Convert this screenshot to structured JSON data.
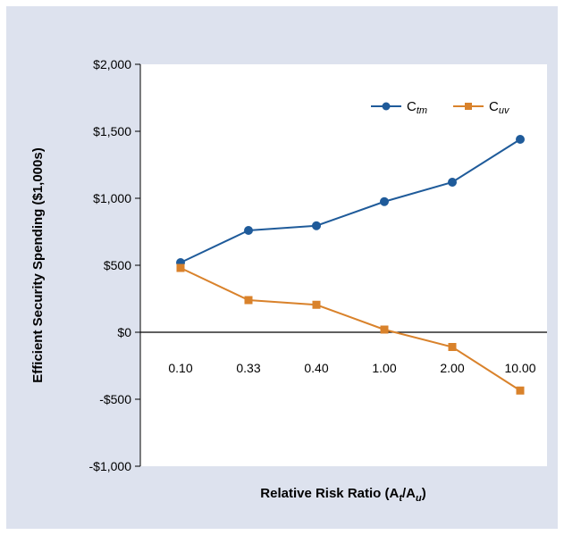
{
  "chart_data": {
    "type": "line",
    "categories": [
      "0.10",
      "0.33",
      "0.40",
      "1.00",
      "2.00",
      "10.00"
    ],
    "series": [
      {
        "name": "Ctm",
        "name_main": "C",
        "name_sub": "tm",
        "color": "#1f5b9a",
        "marker": "circle",
        "values": [
          520,
          760,
          795,
          975,
          1120,
          1440
        ]
      },
      {
        "name": "Cuv",
        "name_main": "C",
        "name_sub": "uv",
        "color": "#d9822b",
        "marker": "square",
        "values": [
          480,
          240,
          205,
          20,
          -110,
          -435
        ]
      }
    ],
    "ylim": [
      -1000,
      2000
    ],
    "yticks": [
      -1000,
      -500,
      0,
      500,
      1000,
      1500,
      2000
    ],
    "ytick_labels": [
      "-$1,000",
      "-$500",
      "$0",
      "$500",
      "$1,000",
      "$1,500",
      "$2,000"
    ],
    "ylabel": "Efficient Security Spending ($1,000s)",
    "xlabel": {
      "prefix": "Relative Risk Ratio (A",
      "sub1": "t",
      "mid": "/A",
      "sub2": "u",
      "suffix": ")"
    },
    "legend_position": "top-right",
    "grid": false,
    "background": "#dde2ee",
    "plot_background": "#ffffff"
  }
}
